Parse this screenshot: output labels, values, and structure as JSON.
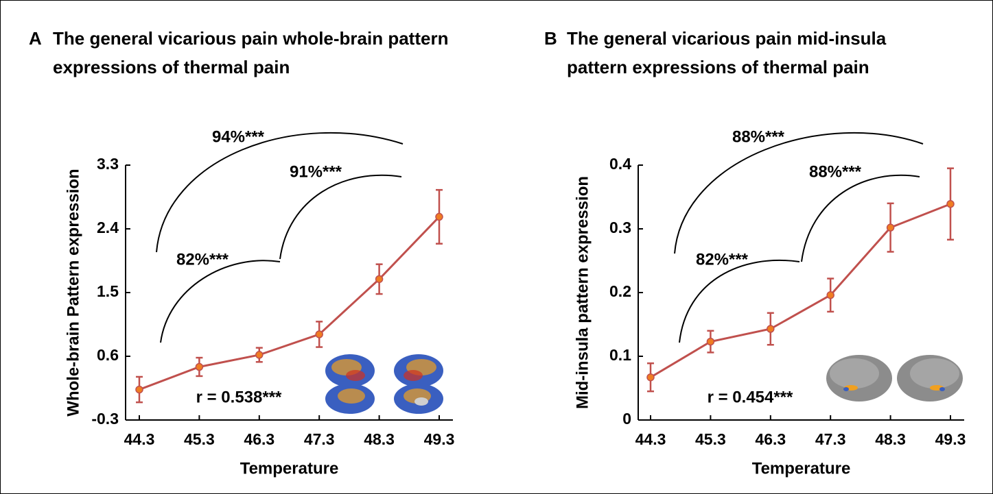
{
  "chart_data": [
    {
      "type": "line",
      "panel_label": "A",
      "title": [
        "The general vicarious pain whole-brain pattern",
        "expressions of thermal pain"
      ],
      "xlabel": "Temperature",
      "ylabel": "Whole-brain Pattern expression",
      "categories": [
        "44.3",
        "45.3",
        "46.3",
        "47.3",
        "48.3",
        "49.3"
      ],
      "values": [
        0.13,
        0.45,
        0.62,
        0.91,
        1.69,
        2.57
      ],
      "errors": [
        0.18,
        0.13,
        0.1,
        0.18,
        0.21,
        0.38
      ],
      "color": "#c0504d",
      "marker_color": "#f07d22",
      "ylim": [
        -0.3,
        3.3
      ],
      "yticks": [
        -0.3,
        0.6,
        1.5,
        2.4,
        3.3
      ],
      "annotations": [
        "94%***",
        "91%***",
        "82%***",
        "r = 0.538***"
      ]
    },
    {
      "type": "line",
      "panel_label": "B",
      "title": [
        "The general vicarious pain mid-insula",
        "pattern expressions of thermal pain"
      ],
      "xlabel": "Temperature",
      "ylabel": "Mid-insula pattern expression",
      "categories": [
        "44.3",
        "45.3",
        "46.3",
        "47.3",
        "48.3",
        "49.3"
      ],
      "values": [
        0.067,
        0.123,
        0.143,
        0.196,
        0.302,
        0.339
      ],
      "errors": [
        0.022,
        0.017,
        0.025,
        0.026,
        0.038,
        0.056
      ],
      "color": "#c0504d",
      "marker_color": "#f07d22",
      "ylim": [
        0,
        0.4
      ],
      "yticks": [
        0,
        0.1,
        0.2,
        0.3,
        0.4
      ],
      "annotations": [
        "88%***",
        "88%***",
        "82%***",
        "r = 0.454***"
      ]
    }
  ]
}
